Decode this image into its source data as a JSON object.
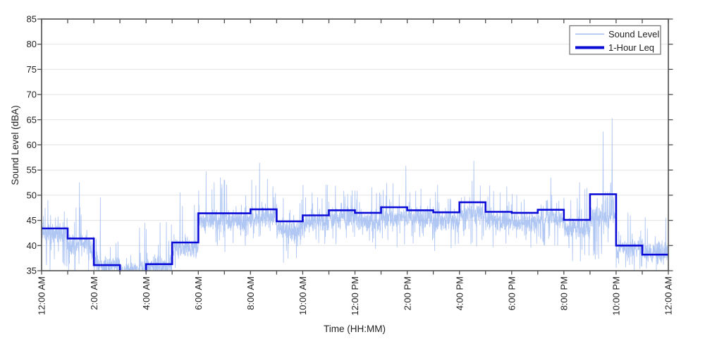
{
  "figure": {
    "background": "#ffffff",
    "title": ""
  },
  "colors": {
    "sound_level": "#9db9f0",
    "leq": "#0b0bd8",
    "grid": "#e3e3e3",
    "axis": "#4d4d4d",
    "text": "#1f1f1f",
    "legend_border": "#767676",
    "legend_bg": "#ffffff"
  },
  "chart_data": {
    "type": "line",
    "title": "",
    "xlabel": "Time (HH:MM)",
    "ylabel": "Sound Level (dBA)",
    "ylim": [
      35,
      85
    ],
    "xlim_hours": [
      0,
      24
    ],
    "grid": "horizontal-only",
    "y_ticks": [
      35,
      40,
      45,
      50,
      55,
      60,
      65,
      70,
      75,
      80,
      85
    ],
    "x_tick_hours": [
      0,
      2,
      4,
      6,
      8,
      10,
      12,
      14,
      16,
      18,
      20,
      22,
      24
    ],
    "x_tick_labels": [
      "12:00 AM",
      "2:00 AM",
      "4:00 AM",
      "6:00 AM",
      "8:00 AM",
      "10:00 AM",
      "12:00 PM",
      "2:00 PM",
      "4:00 PM",
      "6:00 PM",
      "8:00 PM",
      "10:00 PM",
      "12:00 AM"
    ],
    "x_minor_tick_every_hours": 1,
    "legend": {
      "position": "top-right",
      "entries": [
        {
          "label": "Sound Level",
          "color": "#9db9f0",
          "line_width": 1.2
        },
        {
          "label": "1-Hour Leq",
          "color": "#0b0bd8",
          "line_width": 4
        }
      ]
    },
    "series": [
      {
        "name": "Sound Level",
        "color": "#9db9f0",
        "opacity": 0.8,
        "description": "high-rate noisy sound level trace, clipped at 35 dBA floor"
      },
      {
        "name": "1-Hour Leq",
        "color": "#0b0bd8",
        "step_hours": [
          0,
          1,
          2,
          3,
          4,
          5,
          6,
          7,
          8,
          9,
          10,
          11,
          12,
          13,
          14,
          15,
          16,
          17,
          18,
          19,
          20,
          21,
          22,
          23
        ],
        "hourly_leq_dBA": [
          43.4,
          41.4,
          36.1,
          34.6,
          36.3,
          40.6,
          46.4,
          46.4,
          47.2,
          44.8,
          46.0,
          47.0,
          46.5,
          47.6,
          47.0,
          46.6,
          48.6,
          46.7,
          46.5,
          47.1,
          45.1,
          50.2,
          40.0,
          38.2
        ]
      }
    ],
    "sound_level_envelope": [
      {
        "hour": 0,
        "mean": 42.5,
        "lo": 35.0,
        "hi": 49.5
      },
      {
        "hour": 1,
        "mean": 40.0,
        "lo": 35.0,
        "hi": 47.5
      },
      {
        "hour": 2,
        "mean": 36.0,
        "lo": 34.0,
        "hi": 44.0
      },
      {
        "hour": 3,
        "mean": 35.0,
        "lo": 33.5,
        "hi": 38.5
      },
      {
        "hour": 4,
        "mean": 36.0,
        "lo": 34.0,
        "hi": 46.0
      },
      {
        "hour": 5,
        "mean": 39.5,
        "lo": 35.0,
        "hi": 50.0
      },
      {
        "hour": 6,
        "mean": 45.0,
        "lo": 39.5,
        "hi": 53.0
      },
      {
        "hour": 7,
        "mean": 45.0,
        "lo": 39.5,
        "hi": 53.0
      },
      {
        "hour": 8,
        "mean": 45.5,
        "lo": 40.0,
        "hi": 53.0
      },
      {
        "hour": 9,
        "mean": 43.0,
        "lo": 37.5,
        "hi": 50.0
      },
      {
        "hour": 10,
        "mean": 44.5,
        "lo": 40.0,
        "hi": 52.0
      },
      {
        "hour": 11,
        "mean": 45.5,
        "lo": 40.0,
        "hi": 52.5
      },
      {
        "hour": 12,
        "mean": 45.0,
        "lo": 40.0,
        "hi": 52.0
      },
      {
        "hour": 13,
        "mean": 45.5,
        "lo": 40.0,
        "hi": 53.0
      },
      {
        "hour": 14,
        "mean": 45.5,
        "lo": 40.0,
        "hi": 52.0
      },
      {
        "hour": 15,
        "mean": 45.0,
        "lo": 39.5,
        "hi": 52.0
      },
      {
        "hour": 16,
        "mean": 46.5,
        "lo": 41.0,
        "hi": 54.0
      },
      {
        "hour": 17,
        "mean": 45.0,
        "lo": 40.0,
        "hi": 52.0
      },
      {
        "hour": 18,
        "mean": 44.5,
        "lo": 39.0,
        "hi": 52.0
      },
      {
        "hour": 19,
        "mean": 45.5,
        "lo": 40.0,
        "hi": 52.5
      },
      {
        "hour": 20,
        "mean": 43.5,
        "lo": 37.0,
        "hi": 52.0
      },
      {
        "hour": 21,
        "mean": 45.5,
        "lo": 37.5,
        "hi": 53.0
      },
      {
        "hour": 22,
        "mean": 39.5,
        "lo": 35.0,
        "hi": 46.5
      },
      {
        "hour": 23,
        "mean": 38.5,
        "lo": 34.5,
        "hi": 46.0
      }
    ],
    "spikes": [
      {
        "hour": 1.45,
        "value": 52.5
      },
      {
        "hour": 2.25,
        "value": 49.5
      },
      {
        "hour": 3.75,
        "value": 43.5
      },
      {
        "hour": 3.95,
        "value": 44.5
      },
      {
        "hour": 5.3,
        "value": 50.5
      },
      {
        "hour": 6.3,
        "value": 54.7
      },
      {
        "hour": 6.85,
        "value": 53.5
      },
      {
        "hour": 8.35,
        "value": 56.4
      },
      {
        "hour": 8.65,
        "value": 53.2
      },
      {
        "hour": 13.95,
        "value": 55.8
      },
      {
        "hour": 16.55,
        "value": 56.8
      },
      {
        "hour": 19.5,
        "value": 53.5
      },
      {
        "hour": 20.6,
        "value": 52.5
      },
      {
        "hour": 21.5,
        "value": 62.6
      },
      {
        "hour": 21.85,
        "value": 65.3
      },
      {
        "hour": 23.9,
        "value": 45.5
      }
    ],
    "noise_seed": 1234,
    "points_per_day": 3200
  }
}
